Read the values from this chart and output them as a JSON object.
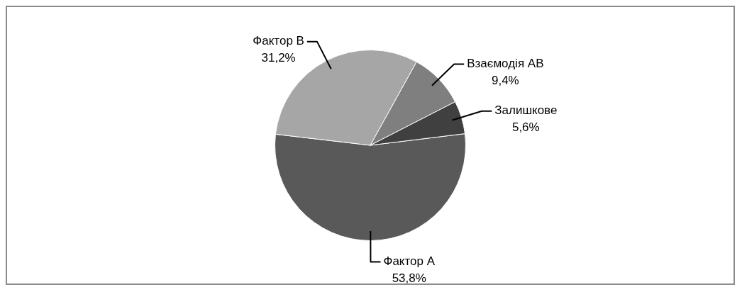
{
  "chart_data": {
    "type": "pie",
    "categories": [
      "Фактор А",
      "Фактор В",
      "Взаємодія АВ",
      "Залишкове"
    ],
    "values": [
      53.8,
      31.2,
      9.4,
      5.6
    ],
    "colors": [
      "#595959",
      "#a6a6a6",
      "#7f7f7f",
      "#404040"
    ],
    "value_labels": [
      "53,8%",
      "31,2%",
      "9,4%",
      "5,6%"
    ],
    "legend": false
  }
}
